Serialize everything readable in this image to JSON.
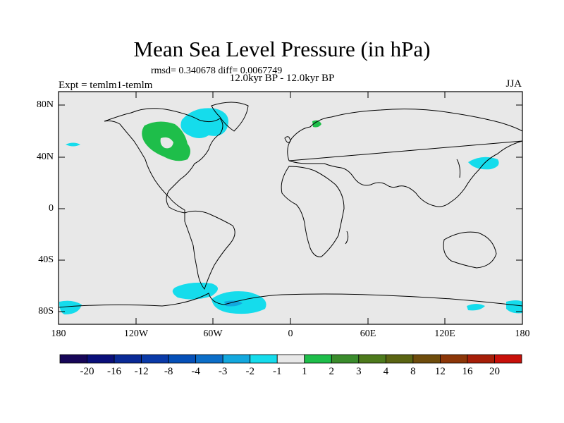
{
  "title": "Mean Sea Level Pressure (in hPa)",
  "stats_line": "rmsd= 0.340678 diff= 0.0067749",
  "period_line": "12.0kyr BP - 12.0kyr BP",
  "experiment_label": "Expt = temlm1-temlm",
  "season_label": "JJA",
  "lat_labels": [
    "80N",
    "40N",
    "0",
    "40S",
    "80S"
  ],
  "lon_labels": [
    "180",
    "120W",
    "60W",
    "0",
    "60E",
    "120E",
    "180"
  ],
  "colorbar": {
    "labels": [
      "-20",
      "-16",
      "-12",
      "-8",
      "-4",
      "-3",
      "-2",
      "-1",
      "1",
      "2",
      "3",
      "4",
      "8",
      "12",
      "16",
      "20"
    ],
    "colors": [
      "#170658",
      "#0a0f7a",
      "#0a2a96",
      "#0a3aa8",
      "#0550b8",
      "#0c6ec8",
      "#13a8de",
      "#15dcec",
      "#e8e8e8",
      "#1ebe4a",
      "#3a8c2c",
      "#4d7a1c",
      "#5a6412",
      "#6e4c0c",
      "#8c3608",
      "#a61e08",
      "#c8100a"
    ]
  },
  "colors": {
    "background": "#e8e8e8",
    "negative_anomaly": "#15dcec",
    "strong_negative_anomaly": "#13a8de",
    "positive_anomaly": "#1ebe4a"
  }
}
